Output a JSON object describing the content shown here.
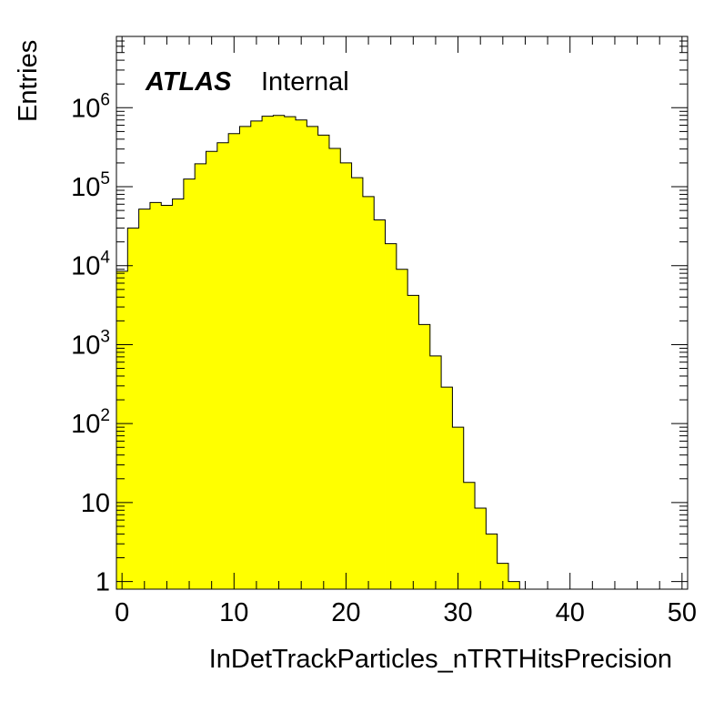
{
  "chart_data": {
    "type": "bar",
    "histogram": true,
    "xlabel": "InDetTrackParticles_nTRTHitsPrecision",
    "ylabel": "Entries",
    "x_ticks": [
      "0",
      "10",
      "20",
      "30",
      "40",
      "50"
    ],
    "y_ticks": [
      {
        "base": "1",
        "exp": ""
      },
      {
        "base": "10",
        "exp": ""
      },
      {
        "base": "10",
        "exp": "2"
      },
      {
        "base": "10",
        "exp": "3"
      },
      {
        "base": "10",
        "exp": "4"
      },
      {
        "base": "10",
        "exp": "5"
      },
      {
        "base": "10",
        "exp": "6"
      }
    ],
    "xlim": [
      -0.5,
      50.5
    ],
    "ylim": [
      0.8,
      8000000
    ],
    "y_scale": "log",
    "bin_width": 1,
    "bin_edges_start": -0.5,
    "values": [
      8500,
      30000,
      52000,
      63000,
      58000,
      70000,
      125000,
      195000,
      280000,
      360000,
      470000,
      580000,
      680000,
      780000,
      800000,
      770000,
      700000,
      580000,
      450000,
      305000,
      200000,
      130000,
      75000,
      38000,
      19000,
      9000,
      4200,
      1800,
      720,
      290,
      90,
      18,
      8.5,
      4,
      1.7,
      1.0
    ],
    "fill_color": "#ffff00",
    "line_color": "#000000",
    "annotation": {
      "bold": "ATLAS",
      "normal": "Internal"
    }
  }
}
